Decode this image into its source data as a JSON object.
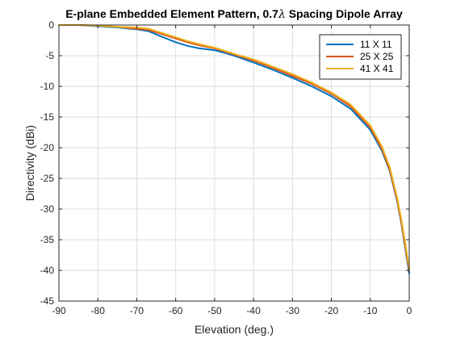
{
  "chart_data": {
    "type": "line",
    "title_prefix": "E-plane Embedded Element Pattern, 0.7",
    "title_symbol": "λ",
    "title_suffix": " Spacing Dipole Array",
    "xlabel": "Elevation (deg.)",
    "ylabel": "Directivity (dBi)",
    "xlim": [
      -90,
      0
    ],
    "ylim": [
      -45,
      0
    ],
    "xticks": [
      -90,
      -80,
      -70,
      -60,
      -50,
      -40,
      -30,
      -20,
      -10,
      0
    ],
    "yticks": [
      0,
      -5,
      -10,
      -15,
      -20,
      -25,
      -30,
      -35,
      -40,
      -45
    ],
    "grid": true,
    "legend_position": "top-right",
    "series": [
      {
        "name": "11 X 11",
        "color": "#0072BD",
        "x": [
          -90,
          -85,
          -80,
          -75,
          -70,
          -67,
          -64,
          -60,
          -57,
          -54,
          -50,
          -47,
          -44,
          -40,
          -35,
          -30,
          -25,
          -20,
          -15,
          -10,
          -7,
          -5,
          -3,
          -2,
          -1,
          0
        ],
        "y": [
          0,
          0,
          -0.2,
          -0.4,
          -0.7,
          -1.0,
          -1.8,
          -2.8,
          -3.4,
          -3.8,
          -4.1,
          -4.6,
          -5.2,
          -6.1,
          -7.3,
          -8.6,
          -10.0,
          -11.6,
          -13.7,
          -17.1,
          -20.5,
          -23.8,
          -29.0,
          -32.5,
          -36.5,
          -40.5
        ]
      },
      {
        "name": "25 X 25",
        "color": "#D95319",
        "x": [
          -90,
          -85,
          -80,
          -75,
          -70,
          -67,
          -64,
          -60,
          -57,
          -54,
          -50,
          -47,
          -44,
          -40,
          -35,
          -30,
          -25,
          -20,
          -15,
          -10,
          -7,
          -5,
          -3,
          -2,
          -1,
          0
        ],
        "y": [
          0,
          0,
          -0.1,
          -0.3,
          -0.6,
          -0.8,
          -1.4,
          -2.2,
          -2.8,
          -3.3,
          -3.8,
          -4.4,
          -5.0,
          -5.8,
          -7.0,
          -8.3,
          -9.6,
          -11.2,
          -13.3,
          -16.7,
          -20.2,
          -23.6,
          -28.8,
          -32.3,
          -36.2,
          -40.0
        ]
      },
      {
        "name": "41 X 41",
        "color": "#EDB120",
        "x": [
          -90,
          -85,
          -80,
          -75,
          -70,
          -67,
          -64,
          -60,
          -57,
          -54,
          -50,
          -47,
          -44,
          -40,
          -35,
          -30,
          -25,
          -20,
          -15,
          -10,
          -7,
          -5,
          -3,
          -2,
          -1,
          0
        ],
        "y": [
          0,
          0,
          -0.1,
          -0.3,
          -0.4,
          -0.6,
          -1.2,
          -2.0,
          -2.6,
          -3.1,
          -3.7,
          -4.3,
          -4.9,
          -5.6,
          -6.8,
          -8.0,
          -9.4,
          -11.0,
          -13.0,
          -16.4,
          -19.8,
          -23.2,
          -28.4,
          -31.8,
          -35.6,
          -39.8
        ]
      }
    ]
  }
}
